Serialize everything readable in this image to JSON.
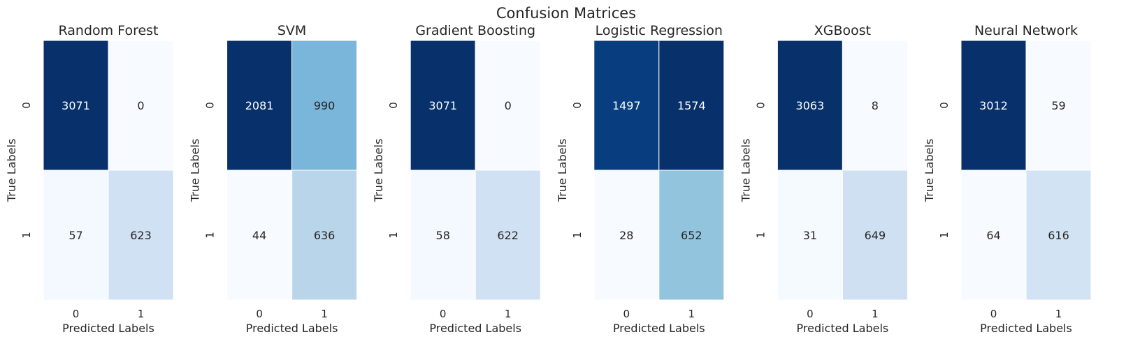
{
  "figure_title": "Confusion Matrices",
  "chart_data": [
    {
      "type": "heatmap",
      "title": "Random Forest",
      "xlabel": "Predicted Labels",
      "ylabel": "True Labels",
      "x_categories": [
        "0",
        "1"
      ],
      "y_categories": [
        "0",
        "1"
      ],
      "values": [
        [
          3071,
          0
        ],
        [
          57,
          623
        ]
      ],
      "colormap": "Blues",
      "grid": false
    },
    {
      "type": "heatmap",
      "title": "SVM",
      "xlabel": "Predicted Labels",
      "ylabel": "True Labels",
      "x_categories": [
        "0",
        "1"
      ],
      "y_categories": [
        "0",
        "1"
      ],
      "values": [
        [
          2081,
          990
        ],
        [
          44,
          636
        ]
      ],
      "colormap": "Blues",
      "grid": false
    },
    {
      "type": "heatmap",
      "title": "Gradient Boosting",
      "xlabel": "Predicted Labels",
      "ylabel": "True Labels",
      "x_categories": [
        "0",
        "1"
      ],
      "y_categories": [
        "0",
        "1"
      ],
      "values": [
        [
          3071,
          0
        ],
        [
          58,
          622
        ]
      ],
      "colormap": "Blues",
      "grid": false
    },
    {
      "type": "heatmap",
      "title": "Logistic Regression",
      "xlabel": "Predicted Labels",
      "ylabel": "True Labels",
      "x_categories": [
        "0",
        "1"
      ],
      "y_categories": [
        "0",
        "1"
      ],
      "values": [
        [
          1497,
          1574
        ],
        [
          28,
          652
        ]
      ],
      "colormap": "Blues",
      "grid": false
    },
    {
      "type": "heatmap",
      "title": "XGBoost",
      "xlabel": "Predicted Labels",
      "ylabel": "True Labels",
      "x_categories": [
        "0",
        "1"
      ],
      "y_categories": [
        "0",
        "1"
      ],
      "values": [
        [
          3063,
          8
        ],
        [
          31,
          649
        ]
      ],
      "colormap": "Blues",
      "grid": false
    },
    {
      "type": "heatmap",
      "title": "Neural Network",
      "xlabel": "Predicted Labels",
      "ylabel": "True Labels",
      "x_categories": [
        "0",
        "1"
      ],
      "y_categories": [
        "0",
        "1"
      ],
      "values": [
        [
          3012,
          59
        ],
        [
          64,
          616
        ]
      ],
      "colormap": "Blues",
      "grid": false
    }
  ]
}
